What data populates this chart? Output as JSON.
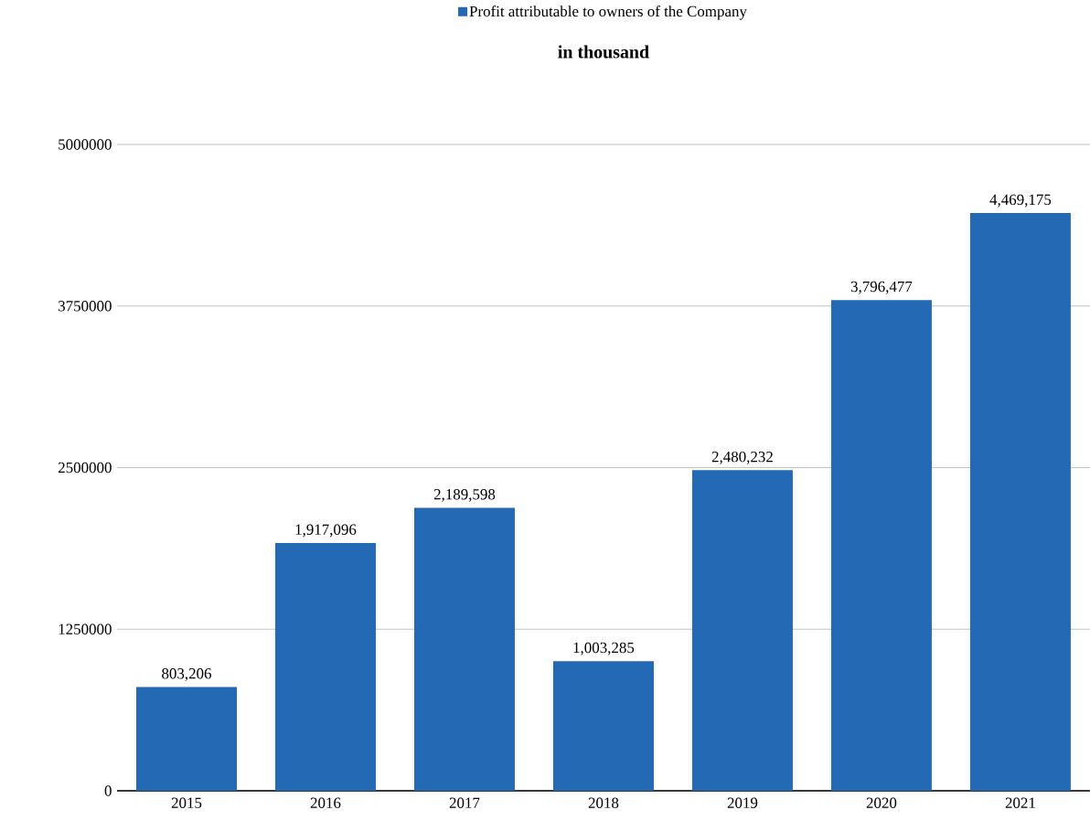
{
  "chart_data": {
    "type": "bar",
    "title": "in thousand",
    "categories": [
      "2015",
      "2016",
      "2017",
      "2018",
      "2019",
      "2020",
      "2021"
    ],
    "series": [
      {
        "name": "Profit attributable to owners of the Company",
        "color": "#2469b3",
        "values": [
          803206,
          1917096,
          2189598,
          1003285,
          2480232,
          3796477,
          4469175
        ],
        "value_labels": [
          "803,206",
          "1,917,096",
          "2,189,598",
          "1,003,285",
          "2,480,232",
          "3,796,477",
          "4,469,175"
        ]
      }
    ],
    "ylim": [
      0,
      5000000
    ],
    "yticks": [
      0,
      1250000,
      2500000,
      3750000,
      5000000
    ],
    "grid": "y",
    "legend": "top"
  }
}
